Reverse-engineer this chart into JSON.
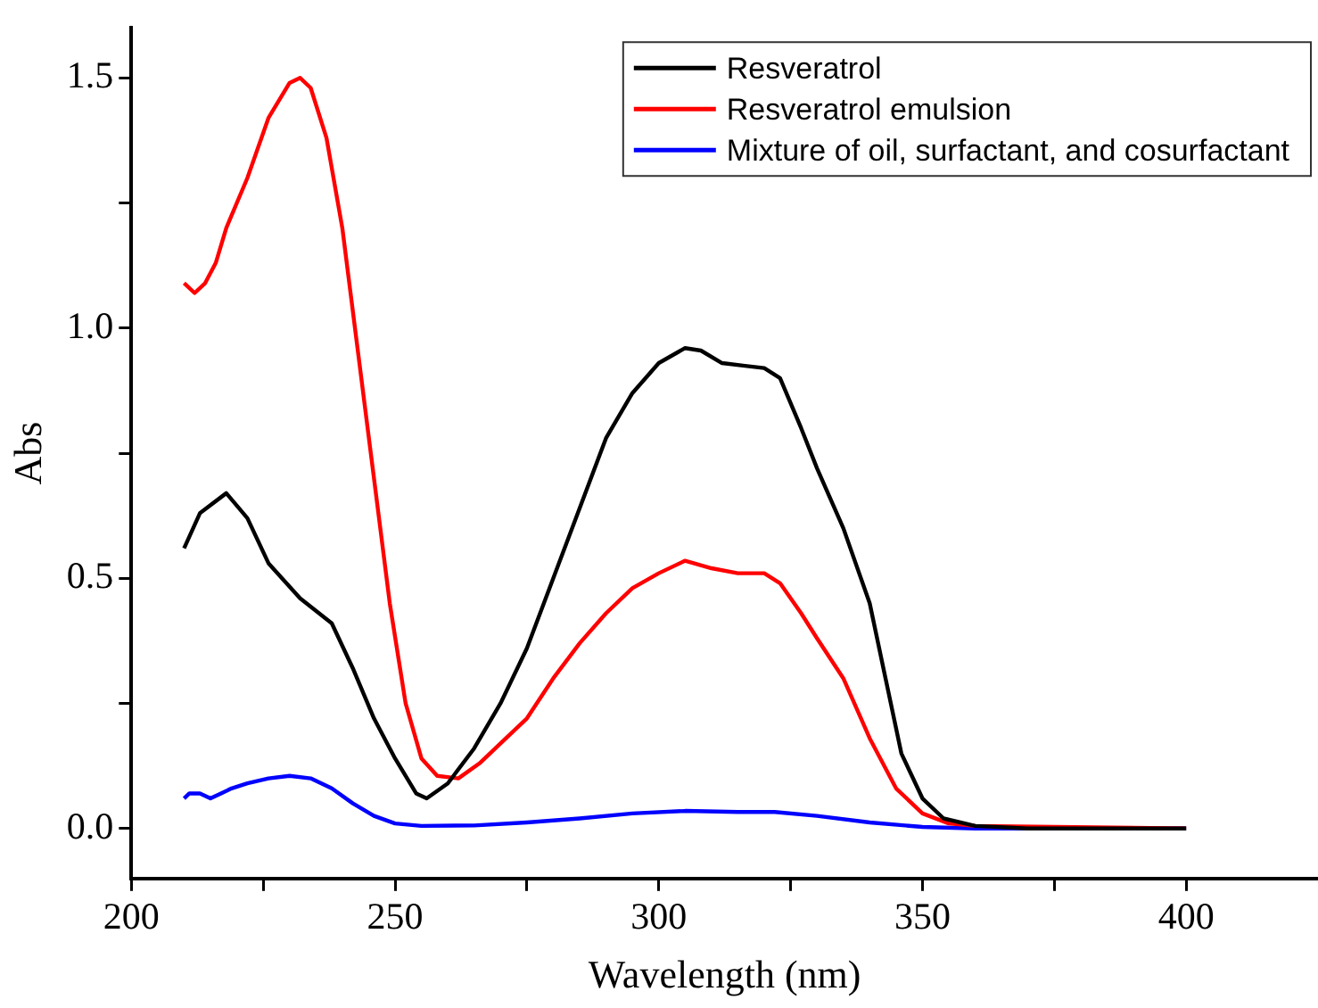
{
  "chart_data": {
    "type": "line",
    "xlabel": "Wavelength (nm)",
    "ylabel": "Abs",
    "xlim": [
      200,
      425
    ],
    "xticks": [
      200,
      {
        "value": 225,
        "label": null
      },
      250,
      {
        "value": 275,
        "label": null
      },
      300,
      {
        "value": 325,
        "label": null
      },
      350,
      {
        "value": 375,
        "label": null
      },
      400
    ],
    "ylim": [
      -0.1,
      1.6
    ],
    "yticks": [
      {
        "value": 0,
        "label": "0.0"
      },
      {
        "value": 0.25,
        "label": null
      },
      0.5,
      {
        "value": 0.75,
        "label": null
      },
      {
        "value": 1,
        "label": "1.0"
      },
      {
        "value": 1.25,
        "label": null
      },
      1.5
    ],
    "grid": false,
    "legend": "top right",
    "marker": "none",
    "line_style": "solid",
    "series": [
      {
        "name": "Resveratrol",
        "color": "#000000",
        "x": [
          210,
          213,
          218,
          222,
          226,
          232,
          238,
          242,
          246,
          250,
          254,
          256,
          260,
          265,
          270,
          275,
          280,
          285,
          290,
          295,
          300,
          305,
          308,
          312,
          316,
          320,
          323,
          327,
          330,
          335,
          340,
          343,
          346,
          350,
          354,
          360,
          370,
          400
        ],
        "values": [
          0.56,
          0.63,
          0.67,
          0.62,
          0.53,
          0.46,
          0.41,
          0.32,
          0.22,
          0.14,
          0.07,
          0.06,
          0.09,
          0.16,
          0.25,
          0.36,
          0.5,
          0.64,
          0.78,
          0.87,
          0.93,
          0.96,
          0.955,
          0.93,
          0.925,
          0.92,
          0.9,
          0.8,
          0.72,
          0.6,
          0.45,
          0.3,
          0.15,
          0.06,
          0.02,
          0.005,
          0,
          0
        ]
      },
      {
        "name": "Resveratrol emulsion",
        "color": "#ff0000",
        "x": [
          210,
          212,
          214,
          216,
          218,
          222,
          226,
          230,
          232,
          234,
          237,
          240,
          243,
          246,
          249,
          252,
          255,
          258,
          262,
          266,
          270,
          275,
          280,
          285,
          290,
          295,
          300,
          305,
          310,
          315,
          320,
          323,
          327,
          330,
          335,
          340,
          345,
          350,
          355,
          360,
          400
        ],
        "values": [
          1.09,
          1.07,
          1.09,
          1.13,
          1.2,
          1.3,
          1.42,
          1.49,
          1.5,
          1.48,
          1.38,
          1.2,
          0.95,
          0.7,
          0.45,
          0.25,
          0.14,
          0.105,
          0.1,
          0.13,
          0.17,
          0.22,
          0.3,
          0.37,
          0.43,
          0.48,
          0.51,
          0.535,
          0.52,
          0.51,
          0.51,
          0.49,
          0.43,
          0.38,
          0.3,
          0.18,
          0.08,
          0.03,
          0.01,
          0.005,
          0
        ]
      },
      {
        "name": "Mixture of oil, surfactant, and cosurfactant",
        "color": "#0000ff",
        "x": [
          210,
          211,
          213,
          215,
          217,
          219,
          222,
          226,
          230,
          234,
          238,
          242,
          246,
          250,
          255,
          265,
          275,
          285,
          295,
          305,
          315,
          322,
          330,
          340,
          350,
          360,
          400
        ],
        "values": [
          0.06,
          0.07,
          0.07,
          0.06,
          0.07,
          0.08,
          0.09,
          0.1,
          0.105,
          0.1,
          0.08,
          0.05,
          0.025,
          0.01,
          0.005,
          0.006,
          0.012,
          0.02,
          0.03,
          0.035,
          0.033,
          0.033,
          0.025,
          0.012,
          0.003,
          0,
          0
        ]
      }
    ]
  }
}
